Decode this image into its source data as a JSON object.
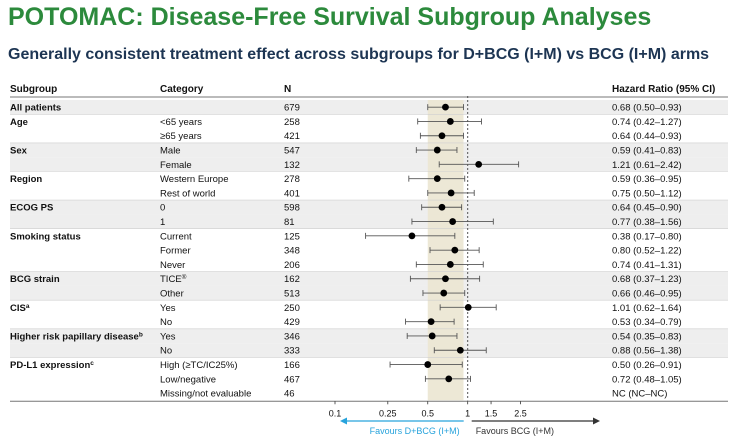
{
  "title": "POTOMAC: Disease-Free Survival Subgroup Analyses",
  "subtitle": "Generally consistent treatment effect across subgroups for D+BCG (I+M) vs BCG (I+M) arms",
  "headers": {
    "subgroup": "Subgroup",
    "category": "Category",
    "n": "N",
    "hr": "Hazard Ratio (95% CI)"
  },
  "colors": {
    "band": "#ebe6d2",
    "shade": "#eeeeee",
    "left_arrow": "#27a3dc",
    "right_arrow": "#333333",
    "ref_line": "#555555"
  },
  "chart_data": {
    "type": "forest",
    "x_scale": "log",
    "xlim": [
      0.1,
      3.0
    ],
    "xticks": [
      "0.1",
      "0.25",
      "0.5",
      "1",
      "1.5",
      "2.5"
    ],
    "xtick_values": [
      0.1,
      0.25,
      0.5,
      1,
      1.5,
      2.5
    ],
    "reference_value": 1,
    "overall_ci": [
      0.5,
      0.93
    ],
    "favours_left": "Favours D+BCG (I+M)",
    "favours_right": "Favours BCG (I+M)",
    "rows": [
      {
        "group": "All patients",
        "category": "",
        "sup": "",
        "n": "679",
        "hr": 0.68,
        "lo": 0.5,
        "hi": 0.93,
        "hr_text": "0.68 (0.50–0.93)",
        "shade": true
      },
      {
        "group": "Age",
        "category": "<65 years",
        "sup": "",
        "n": "258",
        "hr": 0.74,
        "lo": 0.42,
        "hi": 1.27,
        "hr_text": "0.74 (0.42–1.27)",
        "shade": false
      },
      {
        "group": "",
        "category": "≥65 years",
        "sup": "",
        "n": "421",
        "hr": 0.64,
        "lo": 0.44,
        "hi": 0.93,
        "hr_text": "0.64 (0.44–0.93)",
        "shade": false
      },
      {
        "group": "Sex",
        "category": "Male",
        "sup": "",
        "n": "547",
        "hr": 0.59,
        "lo": 0.41,
        "hi": 0.83,
        "hr_text": "0.59 (0.41–0.83)",
        "shade": true
      },
      {
        "group": "",
        "category": "Female",
        "sup": "",
        "n": "132",
        "hr": 1.21,
        "lo": 0.61,
        "hi": 2.42,
        "hr_text": "1.21 (0.61–2.42)",
        "shade": true
      },
      {
        "group": "Region",
        "category": "Western Europe",
        "sup": "",
        "n": "278",
        "hr": 0.59,
        "lo": 0.36,
        "hi": 0.95,
        "hr_text": "0.59 (0.36–0.95)",
        "shade": false
      },
      {
        "group": "",
        "category": "Rest of world",
        "sup": "",
        "n": "401",
        "hr": 0.75,
        "lo": 0.5,
        "hi": 1.12,
        "hr_text": "0.75 (0.50–1.12)",
        "shade": false
      },
      {
        "group": "ECOG PS",
        "category": "0",
        "sup": "",
        "n": "598",
        "hr": 0.64,
        "lo": 0.45,
        "hi": 0.9,
        "hr_text": "0.64 (0.45–0.90)",
        "shade": true
      },
      {
        "group": "",
        "category": "1",
        "sup": "",
        "n": "81",
        "hr": 0.77,
        "lo": 0.38,
        "hi": 1.56,
        "hr_text": "0.77 (0.38–1.56)",
        "shade": true
      },
      {
        "group": "Smoking status",
        "category": "Current",
        "sup": "",
        "n": "125",
        "hr": 0.38,
        "lo": 0.17,
        "hi": 0.8,
        "hr_text": "0.38 (0.17–0.80)",
        "shade": false
      },
      {
        "group": "",
        "category": "Former",
        "sup": "",
        "n": "348",
        "hr": 0.8,
        "lo": 0.52,
        "hi": 1.22,
        "hr_text": "0.80 (0.52–1.22)",
        "shade": false
      },
      {
        "group": "",
        "category": "Never",
        "sup": "",
        "n": "206",
        "hr": 0.74,
        "lo": 0.41,
        "hi": 1.31,
        "hr_text": "0.74 (0.41–1.31)",
        "shade": false
      },
      {
        "group": "BCG strain",
        "category": "TICE",
        "sup": "®",
        "n": "162",
        "hr": 0.68,
        "lo": 0.37,
        "hi": 1.23,
        "hr_text": "0.68 (0.37–1.23)",
        "shade": true
      },
      {
        "group": "",
        "category": "Other",
        "sup": "",
        "n": "513",
        "hr": 0.66,
        "lo": 0.46,
        "hi": 0.95,
        "hr_text": "0.66 (0.46–0.95)",
        "shade": true
      },
      {
        "group": "CIS",
        "group_sup": "a",
        "category": "Yes",
        "sup": "",
        "n": "250",
        "hr": 1.01,
        "lo": 0.62,
        "hi": 1.64,
        "hr_text": "1.01 (0.62–1.64)",
        "shade": false
      },
      {
        "group": "",
        "category": "No",
        "sup": "",
        "n": "429",
        "hr": 0.53,
        "lo": 0.34,
        "hi": 0.79,
        "hr_text": "0.53 (0.34–0.79)",
        "shade": false
      },
      {
        "group": "Higher risk papillary disease",
        "group_sup": "b",
        "category": "Yes",
        "sup": "",
        "n": "346",
        "hr": 0.54,
        "lo": 0.35,
        "hi": 0.83,
        "hr_text": "0.54 (0.35–0.83)",
        "shade": true
      },
      {
        "group": "",
        "category": "No",
        "sup": "",
        "n": "333",
        "hr": 0.88,
        "lo": 0.56,
        "hi": 1.38,
        "hr_text": "0.88 (0.56–1.38)",
        "shade": true
      },
      {
        "group": "PD-L1 expression",
        "group_sup": "c",
        "category": "High (≥TC/IC25%)",
        "sup": "",
        "n": "166",
        "hr": 0.5,
        "lo": 0.26,
        "hi": 0.91,
        "hr_text": "0.50 (0.26–0.91)",
        "shade": false
      },
      {
        "group": "",
        "category": "Low/negative",
        "sup": "",
        "n": "467",
        "hr": 0.72,
        "lo": 0.48,
        "hi": 1.05,
        "hr_text": "0.72 (0.48–1.05)",
        "shade": false
      },
      {
        "group": "",
        "category": "Missing/not evaluable",
        "sup": "",
        "n": "46",
        "hr": null,
        "lo": null,
        "hi": null,
        "hr_text": "NC (NC–NC)",
        "shade": false
      }
    ]
  }
}
